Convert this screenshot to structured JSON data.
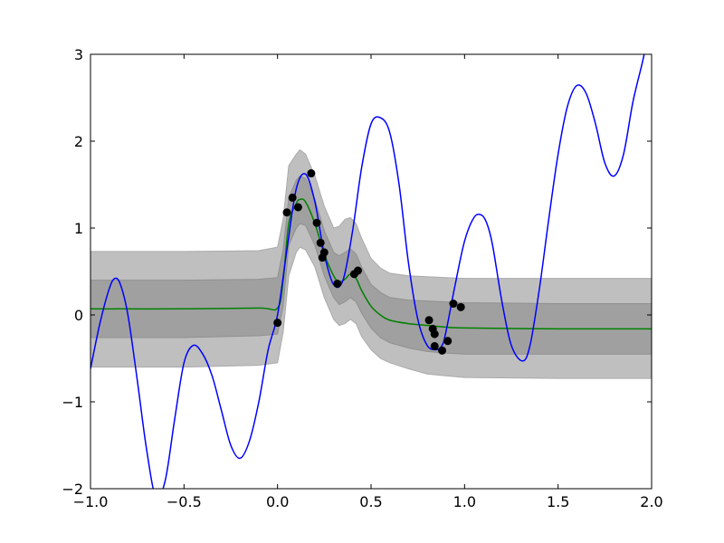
{
  "chart_data": {
    "type": "line",
    "title": "",
    "xlabel": "",
    "ylabel": "",
    "xlim": [
      -1.0,
      2.0
    ],
    "ylim": [
      -2,
      3
    ],
    "grid": false,
    "xticks": [
      -1.0,
      -0.5,
      0.0,
      0.5,
      1.0,
      1.5,
      2.0
    ],
    "xtick_labels": [
      "−1.0",
      "−0.5",
      "0.0",
      "0.5",
      "1.0",
      "1.5",
      "2.0"
    ],
    "yticks": [
      -2,
      -1,
      0,
      1,
      2,
      3
    ],
    "ytick_labels": [
      "−2",
      "−1",
      "0",
      "1",
      "2",
      "3"
    ],
    "series": [
      {
        "role": "true-function",
        "color": "#0000ff",
        "x": [
          -1.0,
          -0.95,
          -0.9,
          -0.87,
          -0.84,
          -0.8,
          -0.75,
          -0.7,
          -0.65,
          -0.6,
          -0.55,
          -0.5,
          -0.45,
          -0.4,
          -0.35,
          -0.3,
          -0.25,
          -0.2,
          -0.15,
          -0.1,
          -0.05,
          0.0,
          0.05,
          0.1,
          0.15,
          0.2,
          0.25,
          0.3,
          0.35,
          0.4,
          0.45,
          0.5,
          0.55,
          0.6,
          0.65,
          0.7,
          0.75,
          0.8,
          0.85,
          0.88,
          0.9,
          0.95,
          1.0,
          1.05,
          1.09,
          1.12,
          1.15,
          1.2,
          1.25,
          1.31,
          1.35,
          1.4,
          1.45,
          1.5,
          1.55,
          1.6,
          1.65,
          1.7,
          1.75,
          1.8,
          1.85,
          1.9,
          1.95,
          1.98
        ],
        "y": [
          -0.62,
          -0.1,
          0.3,
          0.42,
          0.35,
          0.0,
          -0.75,
          -1.55,
          -2.1,
          -1.9,
          -1.2,
          -0.55,
          -0.35,
          -0.45,
          -0.7,
          -1.1,
          -1.5,
          -1.65,
          -1.45,
          -1.0,
          -0.4,
          0.0,
          0.75,
          1.45,
          1.62,
          1.3,
          0.7,
          0.35,
          0.4,
          0.95,
          1.7,
          2.2,
          2.27,
          2.1,
          1.5,
          0.6,
          -0.05,
          -0.35,
          -0.4,
          -0.35,
          -0.2,
          0.35,
          0.85,
          1.12,
          1.15,
          1.05,
          0.8,
          0.15,
          -0.35,
          -0.53,
          -0.35,
          0.3,
          1.1,
          1.85,
          2.4,
          2.64,
          2.55,
          2.2,
          1.75,
          1.6,
          1.85,
          2.45,
          2.9,
          3.2
        ]
      },
      {
        "role": "posterior-mean",
        "color": "#008000",
        "x": [
          -1.0,
          -0.5,
          -0.1,
          0.0,
          0.03,
          0.06,
          0.1,
          0.12,
          0.15,
          0.2,
          0.25,
          0.3,
          0.33,
          0.36,
          0.39,
          0.42,
          0.45,
          0.5,
          0.55,
          0.6,
          0.7,
          0.8,
          0.9,
          1.0,
          1.5,
          2.0
        ],
        "y": [
          0.07,
          0.07,
          0.08,
          0.08,
          0.4,
          1.05,
          1.28,
          1.33,
          1.3,
          1.05,
          0.7,
          0.45,
          0.38,
          0.41,
          0.47,
          0.42,
          0.28,
          0.1,
          0.0,
          -0.06,
          -0.1,
          -0.12,
          -0.14,
          -0.15,
          -0.16,
          -0.16
        ]
      }
    ],
    "bands": [
      {
        "role": "outer-interval",
        "color": "#bfbfbf",
        "x": [
          -1.0,
          -0.5,
          -0.1,
          0.0,
          0.03,
          0.06,
          0.1,
          0.12,
          0.15,
          0.2,
          0.25,
          0.3,
          0.33,
          0.36,
          0.39,
          0.42,
          0.45,
          0.5,
          0.55,
          0.6,
          0.7,
          0.8,
          0.9,
          1.0,
          1.5,
          2.0
        ],
        "lower": [
          -0.6,
          -0.6,
          -0.58,
          -0.55,
          -0.2,
          0.45,
          0.72,
          0.78,
          0.75,
          0.55,
          0.2,
          -0.05,
          -0.12,
          -0.1,
          -0.05,
          -0.1,
          -0.25,
          -0.4,
          -0.5,
          -0.55,
          -0.62,
          -0.68,
          -0.7,
          -0.72,
          -0.73,
          -0.73
        ],
        "upper": [
          0.73,
          0.73,
          0.74,
          0.78,
          1.1,
          1.72,
          1.85,
          1.9,
          1.85,
          1.6,
          1.25,
          1.0,
          1.02,
          1.1,
          1.12,
          1.05,
          0.88,
          0.65,
          0.54,
          0.48,
          0.45,
          0.44,
          0.43,
          0.42,
          0.42,
          0.42
        ]
      },
      {
        "role": "inner-interval",
        "color": "#a0a0a0",
        "x": [
          -1.0,
          -0.5,
          -0.1,
          0.0,
          0.03,
          0.06,
          0.1,
          0.12,
          0.15,
          0.2,
          0.25,
          0.3,
          0.33,
          0.36,
          0.39,
          0.42,
          0.45,
          0.5,
          0.55,
          0.6,
          0.7,
          0.8,
          0.9,
          1.0,
          1.5,
          2.0
        ],
        "lower": [
          -0.26,
          -0.26,
          -0.24,
          -0.22,
          0.1,
          0.8,
          1.0,
          1.05,
          1.03,
          0.8,
          0.45,
          0.2,
          0.12,
          0.15,
          0.2,
          0.15,
          0.02,
          -0.15,
          -0.26,
          -0.32,
          -0.38,
          -0.42,
          -0.44,
          -0.45,
          -0.45,
          -0.45
        ]
      },
      {
        "role": "inner-interval-upper",
        "x": [
          -1.0,
          -0.5,
          -0.1,
          0.0,
          0.03,
          0.06,
          0.1,
          0.12,
          0.15,
          0.2,
          0.25,
          0.3,
          0.33,
          0.36,
          0.39,
          0.42,
          0.45,
          0.5,
          0.55,
          0.6,
          0.7,
          0.8,
          0.9,
          1.0,
          1.5,
          2.0
        ],
        "upper": [
          0.4,
          0.4,
          0.41,
          0.43,
          0.75,
          1.35,
          1.55,
          1.6,
          1.57,
          1.33,
          0.97,
          0.72,
          0.68,
          0.72,
          0.76,
          0.7,
          0.55,
          0.35,
          0.26,
          0.2,
          0.17,
          0.16,
          0.15,
          0.14,
          0.13,
          0.13
        ]
      }
    ],
    "points": {
      "role": "observations",
      "color": "#000000",
      "x": [
        0.0,
        0.05,
        0.08,
        0.11,
        0.18,
        0.21,
        0.23,
        0.24,
        0.25,
        0.32,
        0.41,
        0.43,
        0.81,
        0.83,
        0.84,
        0.84,
        0.88,
        0.91,
        0.94,
        0.98
      ],
      "y": [
        -0.09,
        1.18,
        1.35,
        1.24,
        1.63,
        1.06,
        0.83,
        0.66,
        0.72,
        0.36,
        0.47,
        0.51,
        -0.06,
        -0.16,
        -0.22,
        -0.36,
        -0.41,
        -0.3,
        0.13,
        0.09
      ]
    }
  }
}
